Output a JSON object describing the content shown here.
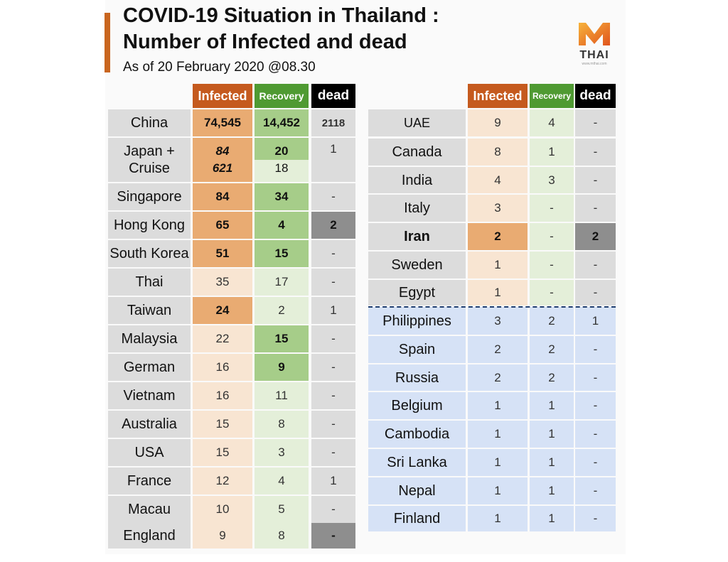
{
  "title_line1": "COVID-19 Situation in Thailand :",
  "title_line2": "Number of Infected and dead",
  "subtitle": "As of 20 February 2020 @08.30",
  "logo": {
    "mark": "M",
    "word": "THAI",
    "tagline": "www.mthai.com"
  },
  "headers": {
    "infected": "Infected",
    "recovery": "Recovery",
    "dead": "dead"
  },
  "left_table": [
    {
      "country": "China",
      "infected": "74,545",
      "recovery": "14,452",
      "dead": "2118"
    },
    {
      "country": "Japan +",
      "country2": "Cruise",
      "infected": "84",
      "infected2": "621",
      "recovery": "20",
      "recovery2": "18",
      "dead": "1"
    },
    {
      "country": "Singapore",
      "infected": "84",
      "recovery": "34",
      "dead": "-"
    },
    {
      "country": "Hong Kong",
      "infected": "65",
      "recovery": "4",
      "dead": "2"
    },
    {
      "country": "South Korea",
      "infected": "51",
      "recovery": "15",
      "dead": "-"
    },
    {
      "country": "Thai",
      "infected": "35",
      "recovery": "17",
      "dead": "-"
    },
    {
      "country": "Taiwan",
      "infected": "24",
      "recovery": "2",
      "dead": "1"
    },
    {
      "country": "Malaysia",
      "infected": "22",
      "recovery": "15",
      "dead": "-"
    },
    {
      "country": "German",
      "infected": "16",
      "recovery": "9",
      "dead": "-"
    },
    {
      "country": "Vietnam",
      "infected": "16",
      "recovery": "11",
      "dead": "-"
    },
    {
      "country": "Australia",
      "infected": "15",
      "recovery": "8",
      "dead": "-"
    },
    {
      "country": "USA",
      "infected": "15",
      "recovery": "3",
      "dead": "-"
    },
    {
      "country": "France",
      "infected": "12",
      "recovery": "4",
      "dead": "1"
    },
    {
      "country": "Macau",
      "infected": "10",
      "recovery": "5",
      "dead": "-"
    },
    {
      "country": "England",
      "infected": "9",
      "recovery": "8",
      "dead": "-"
    }
  ],
  "right_table": [
    {
      "country": "UAE",
      "infected": "9",
      "recovery": "4",
      "dead": "-"
    },
    {
      "country": "Canada",
      "infected": "8",
      "recovery": "1",
      "dead": "-"
    },
    {
      "country": "India",
      "infected": "4",
      "recovery": "3",
      "dead": "-"
    },
    {
      "country": "Italy",
      "infected": "3",
      "recovery": "-",
      "dead": "-"
    },
    {
      "country": "Iran",
      "infected": "2",
      "recovery": "-",
      "dead": "2"
    },
    {
      "country": "Sweden",
      "infected": "1",
      "recovery": "-",
      "dead": "-"
    },
    {
      "country": "Egypt",
      "infected": "1",
      "recovery": "-",
      "dead": "-"
    },
    {
      "country": "Philippines",
      "infected": "3",
      "recovery": "2",
      "dead": "1"
    },
    {
      "country": "Spain",
      "infected": "2",
      "recovery": "2",
      "dead": "-"
    },
    {
      "country": "Russia",
      "infected": "2",
      "recovery": "2",
      "dead": "-"
    },
    {
      "country": "Belgium",
      "infected": "1",
      "recovery": "1",
      "dead": "-"
    },
    {
      "country": "Cambodia",
      "infected": "1",
      "recovery": "1",
      "dead": "-"
    },
    {
      "country": "Sri Lanka",
      "infected": "1",
      "recovery": "1",
      "dead": "-"
    },
    {
      "country": "Nepal",
      "infected": "1",
      "recovery": "1",
      "dead": "-"
    },
    {
      "country": "Finland",
      "infected": "1",
      "recovery": "1",
      "dead": "-"
    }
  ],
  "colors": {
    "accent": "#c9661f",
    "infected_header": "#c55a1e",
    "recovery_header": "#4f9a32",
    "dead_header": "#000000",
    "asia_blue": "#d6e2f6"
  }
}
